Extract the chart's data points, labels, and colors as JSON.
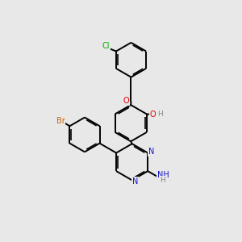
{
  "background_color": "#e8e8e8",
  "bond_color": "#000000",
  "bond_width": 1.4,
  "atom_colors": {
    "C": "#000000",
    "N": "#1414c8",
    "O": "#e00000",
    "Br": "#c86400",
    "Cl": "#00aa00",
    "H": "#888888"
  },
  "figsize": [
    3.0,
    3.0
  ],
  "dpi": 100
}
